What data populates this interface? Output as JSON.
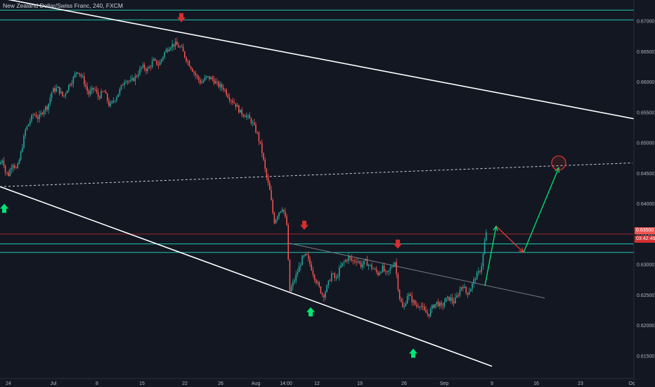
{
  "title": "New Zealand Dollar/Swiss Franc, 240, FXCM",
  "price_tag": "0.63500",
  "countdown": "03:42:48",
  "colors": {
    "background": "#131722",
    "up": "#26a69a",
    "down": "#ef5350",
    "trendline": "#ffffff",
    "horizontal_level": "#22c7b0",
    "red_level": "#c62828",
    "marker_down": "#d32f2f",
    "marker_up": "#00e676",
    "projection_up": "#00e676",
    "projection_down": "#e53935"
  },
  "chart_data": {
    "type": "candlestick",
    "symbol": "New Zealand Dollar/Swiss Franc",
    "interval": "240",
    "source": "FXCM",
    "x_tick_labels": [
      "24",
      "Jul",
      "8",
      "15",
      "22",
      "26",
      "Aug",
      "14:00",
      "12",
      "19",
      "26",
      "Sep",
      "9",
      "16",
      "23",
      "Oc"
    ],
    "y_tick_labels": [
      "0.67000",
      "0.66500",
      "0.66000",
      "0.65500",
      "0.65000",
      "0.64500",
      "0.64000",
      "0.63500",
      "0.63000",
      "0.62500",
      "0.62000",
      "0.61500"
    ],
    "ylim": [
      0.6125,
      0.6727
    ],
    "last_price": 0.635,
    "horizontal_levels": [
      0.6718,
      0.6702,
      0.6334,
      0.632
    ],
    "red_level": 0.635,
    "price_path": [
      [
        0,
        0.6465
      ],
      [
        4,
        0.6475
      ],
      [
        8,
        0.645
      ],
      [
        12,
        0.6448
      ],
      [
        18,
        0.6468
      ],
      [
        24,
        0.6455
      ],
      [
        30,
        0.6485
      ],
      [
        36,
        0.652
      ],
      [
        42,
        0.6535
      ],
      [
        48,
        0.6548
      ],
      [
        55,
        0.654
      ],
      [
        62,
        0.6555
      ],
      [
        68,
        0.656
      ],
      [
        74,
        0.6585
      ],
      [
        82,
        0.659
      ],
      [
        90,
        0.6575
      ],
      [
        98,
        0.6595
      ],
      [
        104,
        0.6605
      ],
      [
        110,
        0.662
      ],
      [
        118,
        0.6605
      ],
      [
        126,
        0.658
      ],
      [
        134,
        0.659
      ],
      [
        140,
        0.6575
      ],
      [
        148,
        0.6585
      ],
      [
        156,
        0.656
      ],
      [
        162,
        0.657
      ],
      [
        170,
        0.6585
      ],
      [
        178,
        0.6605
      ],
      [
        186,
        0.66
      ],
      [
        194,
        0.661
      ],
      [
        202,
        0.6625
      ],
      [
        210,
        0.662
      ],
      [
        218,
        0.6635
      ],
      [
        226,
        0.6628
      ],
      [
        234,
        0.6648
      ],
      [
        242,
        0.666
      ],
      [
        250,
        0.6662
      ],
      [
        258,
        0.6655
      ],
      [
        264,
        0.664
      ],
      [
        270,
        0.6628
      ],
      [
        278,
        0.6612
      ],
      [
        286,
        0.6598
      ],
      [
        294,
        0.6608
      ],
      [
        302,
        0.6605
      ],
      [
        310,
        0.6595
      ],
      [
        318,
        0.659
      ],
      [
        326,
        0.6575
      ],
      [
        334,
        0.6565
      ],
      [
        342,
        0.655
      ],
      [
        350,
        0.6545
      ],
      [
        358,
        0.6535
      ],
      [
        366,
        0.6515
      ],
      [
        372,
        0.649
      ],
      [
        378,
        0.645
      ],
      [
        384,
        0.642
      ],
      [
        390,
        0.637
      ],
      [
        396,
        0.6385
      ],
      [
        402,
        0.6395
      ],
      [
        408,
        0.6365
      ],
      [
        412,
        0.6255
      ],
      [
        418,
        0.6272
      ],
      [
        424,
        0.629
      ],
      [
        430,
        0.631
      ],
      [
        436,
        0.6315
      ],
      [
        442,
        0.6298
      ],
      [
        448,
        0.6278
      ],
      [
        454,
        0.6262
      ],
      [
        460,
        0.6248
      ],
      [
        466,
        0.6265
      ],
      [
        472,
        0.6285
      ],
      [
        478,
        0.6275
      ],
      [
        484,
        0.6295
      ],
      [
        490,
        0.6305
      ],
      [
        496,
        0.6312
      ],
      [
        502,
        0.6305
      ],
      [
        508,
        0.6308
      ],
      [
        514,
        0.6298
      ],
      [
        520,
        0.6305
      ],
      [
        526,
        0.6298
      ],
      [
        532,
        0.6292
      ],
      [
        538,
        0.6285
      ],
      [
        544,
        0.6295
      ],
      [
        550,
        0.6282
      ],
      [
        556,
        0.6295
      ],
      [
        562,
        0.6305
      ],
      [
        568,
        0.6248
      ],
      [
        574,
        0.6225
      ],
      [
        580,
        0.6252
      ],
      [
        586,
        0.6242
      ],
      [
        592,
        0.6232
      ],
      [
        598,
        0.6235
      ],
      [
        604,
        0.6222
      ],
      [
        610,
        0.6218
      ],
      [
        616,
        0.6232
      ],
      [
        622,
        0.6238
      ],
      [
        628,
        0.623
      ],
      [
        634,
        0.6242
      ],
      [
        640,
        0.6245
      ],
      [
        646,
        0.6238
      ],
      [
        652,
        0.6252
      ],
      [
        658,
        0.6268
      ],
      [
        664,
        0.6252
      ],
      [
        670,
        0.6262
      ],
      [
        676,
        0.6278
      ],
      [
        682,
        0.6288
      ],
      [
        686,
        0.6302
      ],
      [
        690,
        0.6342
      ],
      [
        693,
        0.6356
      ]
    ],
    "trendlines": [
      {
        "from": [
          0,
          0.6738
        ],
        "to": [
          932,
          0.6533
        ],
        "style": "solid"
      },
      {
        "from": [
          0,
          0.6428
        ],
        "to": [
          700,
          0.6133
        ],
        "style": "solid"
      },
      {
        "from": [
          0,
          0.6428
        ],
        "to": [
          900,
          0.6467
        ],
        "style": "dashed"
      },
      {
        "from": [
          412,
          0.6335
        ],
        "to": [
          775,
          0.6245
        ],
        "style": "solid-grey"
      }
    ],
    "projection": [
      [
        690,
        0.6265
      ],
      [
        706,
        0.6363
      ],
      [
        745,
        0.632
      ],
      [
        795,
        0.6459
      ]
    ],
    "target_circle": [
      795,
      0.6467
    ],
    "arrows_down": [
      [
        258,
        0.6705
      ],
      [
        433,
        0.6364
      ],
      [
        566,
        0.6333
      ]
    ],
    "arrows_up": [
      [
        6,
        0.6393
      ],
      [
        442,
        0.6223
      ],
      [
        588,
        0.6155
      ]
    ]
  }
}
